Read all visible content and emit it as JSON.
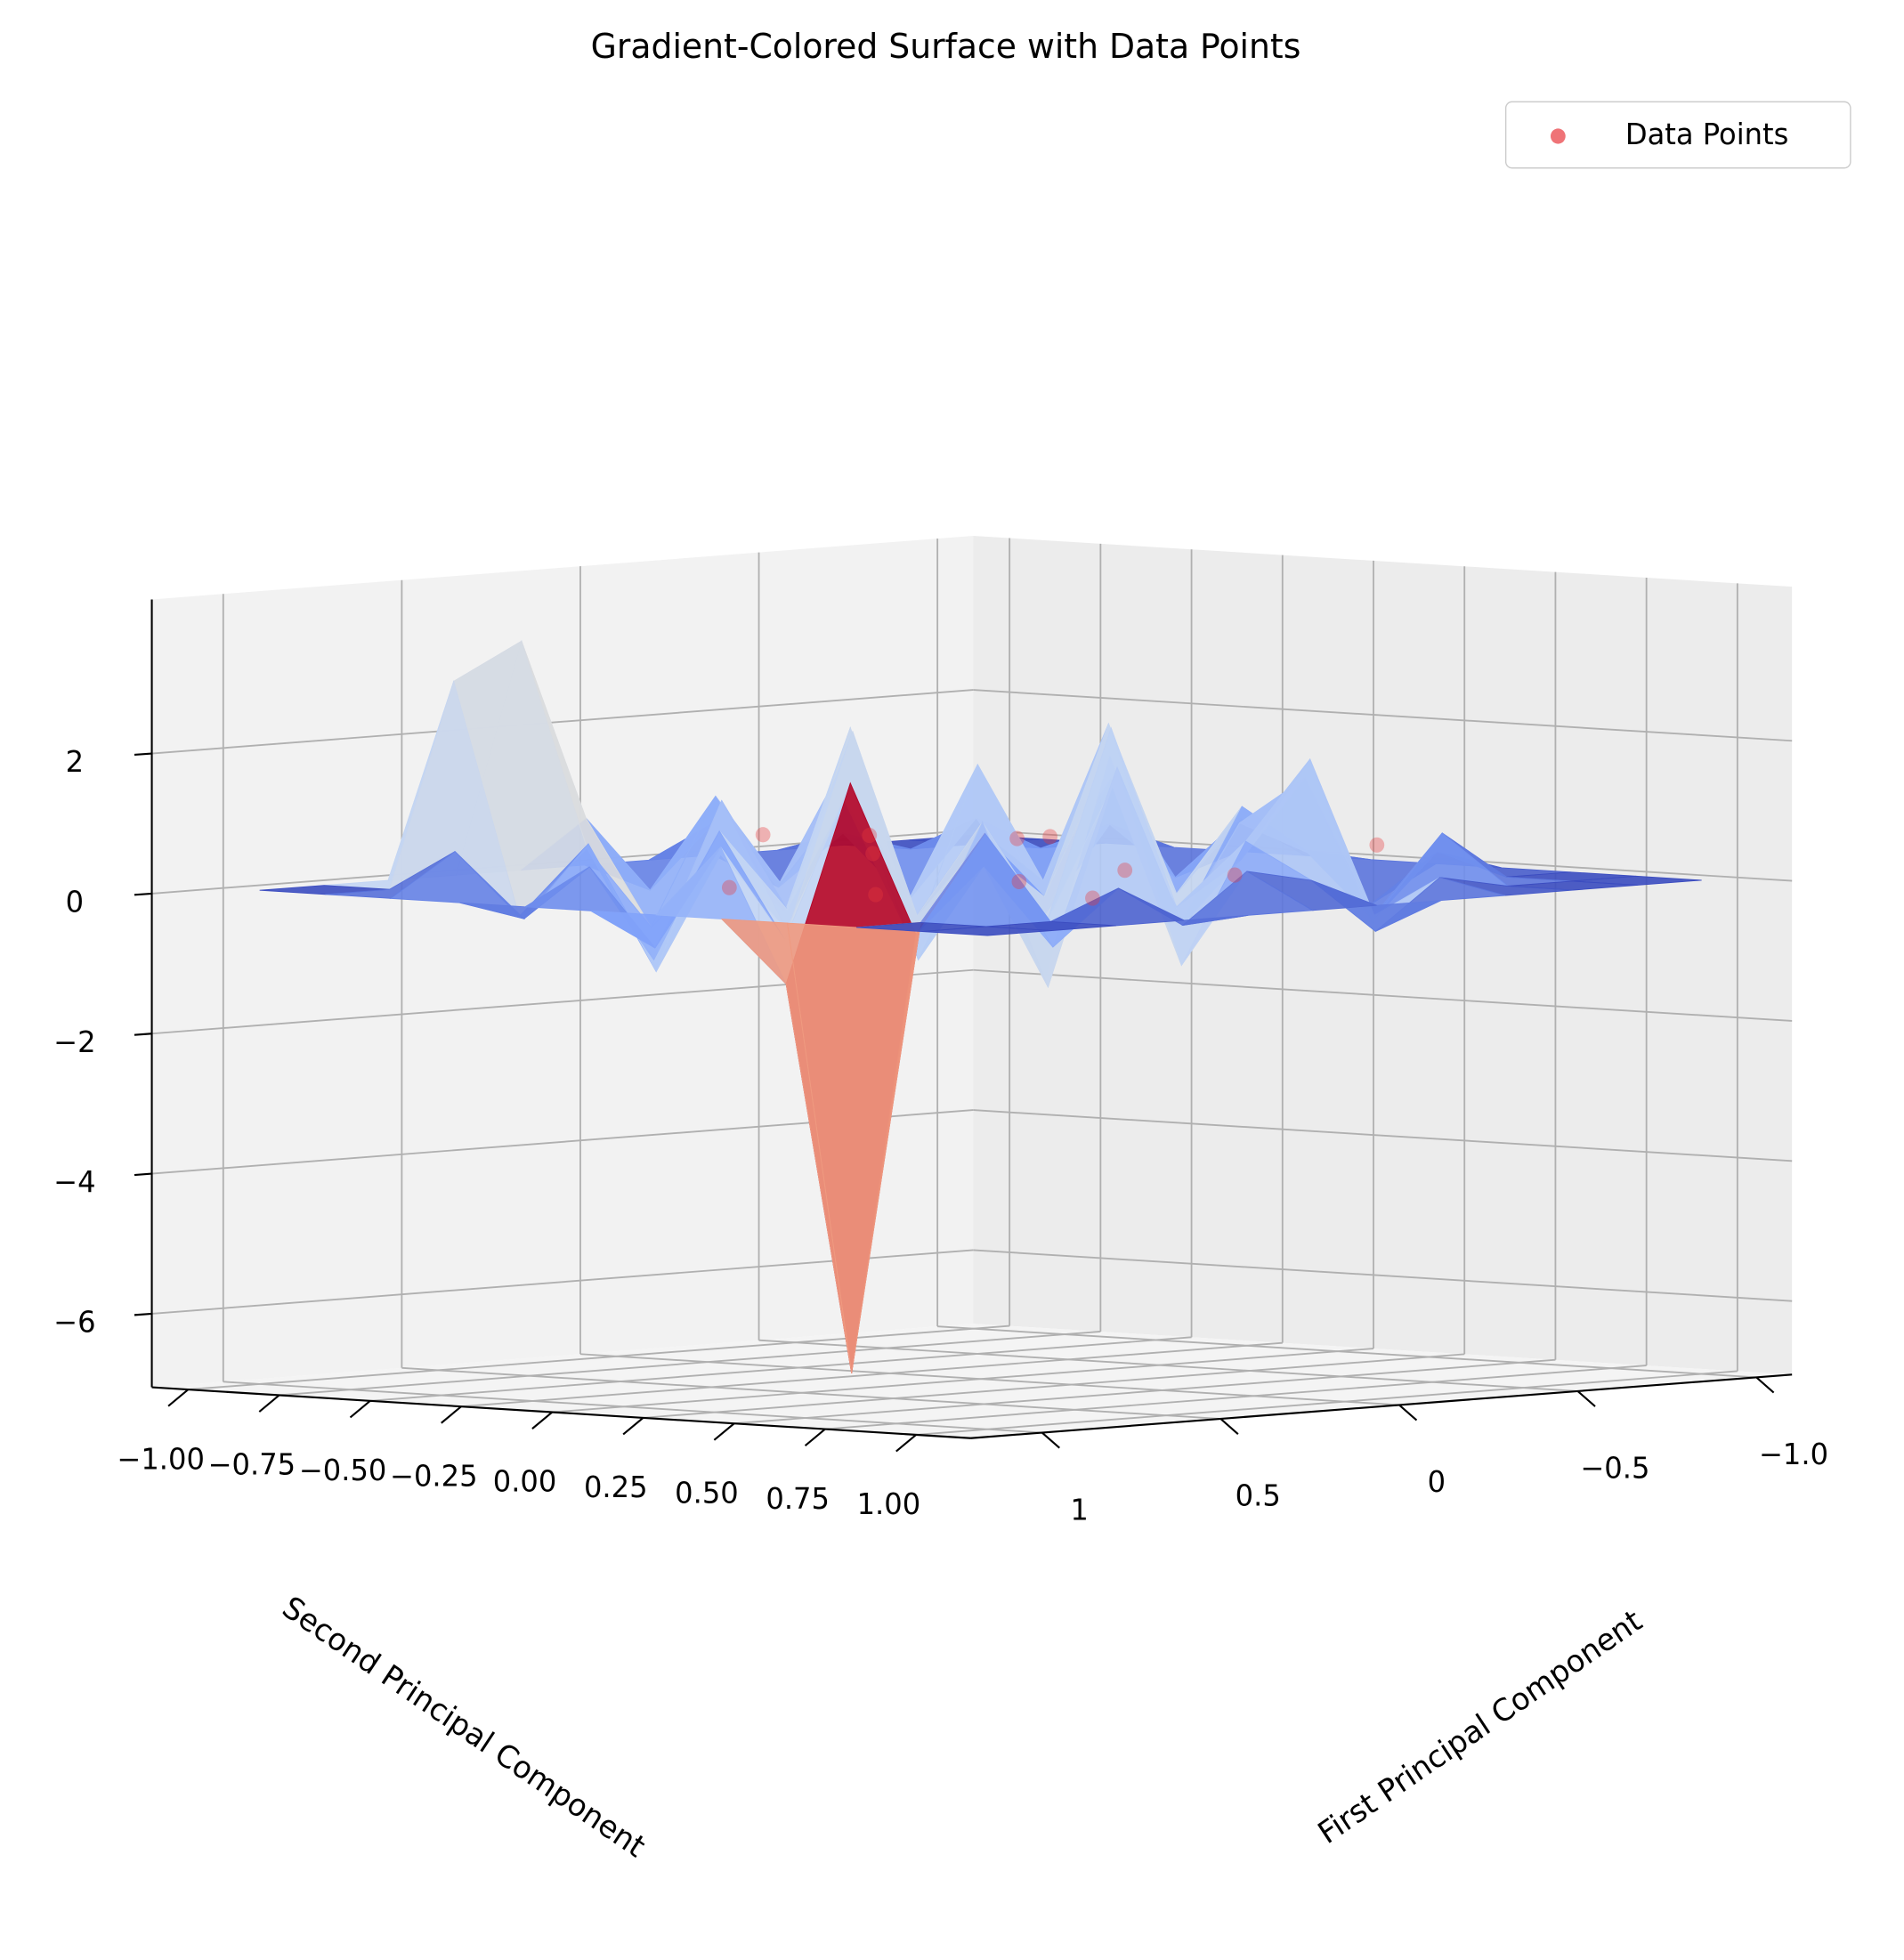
{
  "chart_data": {
    "type": "surface3d",
    "title": "Gradient-Colored Surface with Data Points",
    "xlabel": "First Principal Component",
    "ylabel": "Second Principal Component",
    "xlim": [
      -1.1,
      1.2
    ],
    "ylim": [
      -1.1,
      1.15
    ],
    "zlim": [
      -7.05,
      4.2
    ],
    "xticks": [
      {
        "value": -1.0,
        "label": "−1.0"
      },
      {
        "value": -0.5,
        "label": "−0.5"
      },
      0.0,
      0.5,
      1.0
    ],
    "yticks": [
      {
        "value": -1.0,
        "label": "−1.00"
      },
      {
        "value": -0.75,
        "label": "−0.75"
      },
      {
        "value": -0.5,
        "label": "−0.50"
      },
      {
        "value": -0.25,
        "label": "−0.25"
      },
      {
        "value": 0,
        "label": "0.00"
      },
      {
        "value": 0.25,
        "label": "0.25"
      },
      {
        "value": 0.5,
        "label": "0.50"
      },
      {
        "value": 0.75,
        "label": "0.75"
      },
      {
        "value": 1,
        "label": "1.00"
      }
    ],
    "zticks": [
      {
        "value": -6,
        "label": "−6"
      },
      {
        "value": -4,
        "label": "−4"
      },
      {
        "value": -2,
        "label": "−2"
      },
      0,
      2
    ],
    "grid": true,
    "cmap": "coolwarm",
    "legend": "upper right",
    "surface": {
      "x": [
        -1,
        -0.82,
        -0.64,
        -0.45,
        -0.27,
        -0.09,
        0.09,
        0.27,
        0.45,
        0.64,
        0.82,
        1
      ],
      "y": [
        -1,
        -0.82,
        -0.64,
        -0.45,
        -0.27,
        -0.09,
        0.09,
        0.27,
        0.45,
        0.64,
        0.82,
        1
      ],
      "z": [
        [
          0,
          0,
          0,
          0,
          0,
          0,
          0,
          0,
          0,
          0,
          0,
          0
        ],
        [
          0,
          0,
          0,
          0.4,
          -0.3,
          0.6,
          0.2,
          -0.5,
          0.3,
          0,
          0,
          0
        ],
        [
          0,
          0,
          0.5,
          -0.8,
          1.2,
          -0.4,
          0.9,
          0.3,
          -0.6,
          0.7,
          0,
          0
        ],
        [
          0,
          0.3,
          -0.6,
          1.4,
          -0.2,
          2.1,
          -0.9,
          0.8,
          1.5,
          -0.4,
          0.2,
          0
        ],
        [
          0,
          -0.4,
          0.9,
          -1.1,
          0.6,
          -0.3,
          1.8,
          -0.7,
          0.4,
          1.9,
          -0.5,
          0
        ],
        [
          0,
          0.6,
          -0.2,
          1.7,
          -0.8,
          0.5,
          -1.3,
          2.3,
          -0.2,
          0.8,
          0.3,
          0
        ],
        [
          0,
          -0.3,
          1.1,
          -0.5,
          2.2,
          -1.0,
          0.7,
          -0.4,
          1.6,
          -0.9,
          0.5,
          0
        ],
        [
          0,
          0.8,
          -0.7,
          0.4,
          -0.6,
          1.5,
          -0.3,
          1.1,
          -1.2,
          2.0,
          -0.2,
          0
        ],
        [
          0,
          3.4,
          0.5,
          -1.2,
          1.3,
          -0.2,
          2.4,
          -0.8,
          0.6,
          -0.5,
          0.4,
          0
        ],
        [
          0,
          2.9,
          -0.4,
          0.7,
          -0.9,
          1.0,
          -0.5,
          1.8,
          -0.3,
          1.2,
          0,
          0
        ],
        [
          0,
          0,
          0.6,
          -0.3,
          0.5,
          -0.6,
          0.9,
          -1.0,
          -6.5,
          0,
          0,
          0
        ],
        [
          0,
          0,
          0,
          0,
          0,
          0,
          0,
          0,
          0,
          0,
          0,
          0
        ]
      ]
    },
    "points": {
      "name": "Data Points",
      "color": "#e8383d",
      "x": [
        -0.5,
        -0.2,
        0.1,
        0.3,
        -0.6,
        0.5,
        0.0,
        -0.3,
        0.6,
        0.2,
        -0.1,
        0.4
      ],
      "y": [
        -0.3,
        0.2,
        -0.5,
        0.4,
        0.5,
        -0.2,
        0.1,
        -0.6,
        0.3,
        -0.1,
        0.6,
        0.7
      ],
      "z": [
        0.4,
        0.2,
        0.6,
        0.3,
        0.5,
        0.1,
        0.7,
        0.4,
        0.2,
        0.5,
        0.3,
        0.2
      ]
    }
  }
}
